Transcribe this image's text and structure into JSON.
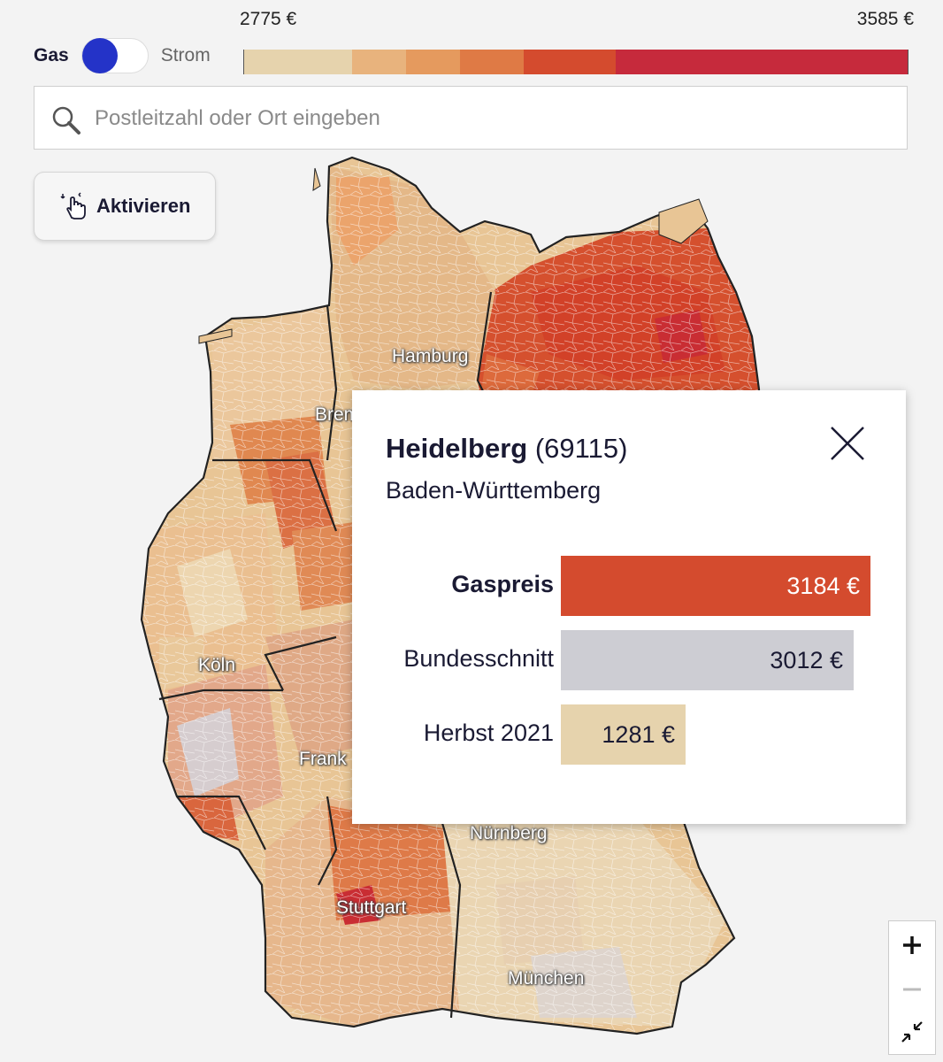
{
  "toggle": {
    "left_label": "Gas",
    "right_label": "Strom",
    "active": "Gas"
  },
  "legend": {
    "min_label": "2775 €",
    "max_label": "3585 €",
    "colors": [
      "#e6d3ad",
      "#e8b37d",
      "#e59a5e",
      "#df7a45",
      "#d44b2e",
      "#c62a3c"
    ]
  },
  "search": {
    "placeholder": "Postleitzahl oder Ort eingeben",
    "value": ""
  },
  "activate_button": {
    "label": "Aktivieren"
  },
  "map": {
    "cities": [
      "Hamburg",
      "Brem",
      "Köln",
      "Frank",
      "Nürnberg",
      "Stuttgart",
      "München"
    ]
  },
  "popup": {
    "city": "Heidelberg",
    "postcode": "(69115)",
    "state": "Baden-Württemberg",
    "rows": [
      {
        "label": "Gaspreis",
        "value": "3184 €",
        "amount": 3184,
        "color": "#d44b2e",
        "bold": true
      },
      {
        "label": "Bundesschnitt",
        "value": "3012 €",
        "amount": 3012,
        "color": "#cdcdd3",
        "bold": false
      },
      {
        "label": "Herbst 2021",
        "value": "1281 €",
        "amount": 1281,
        "color": "#e6d3ad",
        "bold": false
      }
    ]
  },
  "zoom": {
    "in": "+",
    "out": "−"
  }
}
